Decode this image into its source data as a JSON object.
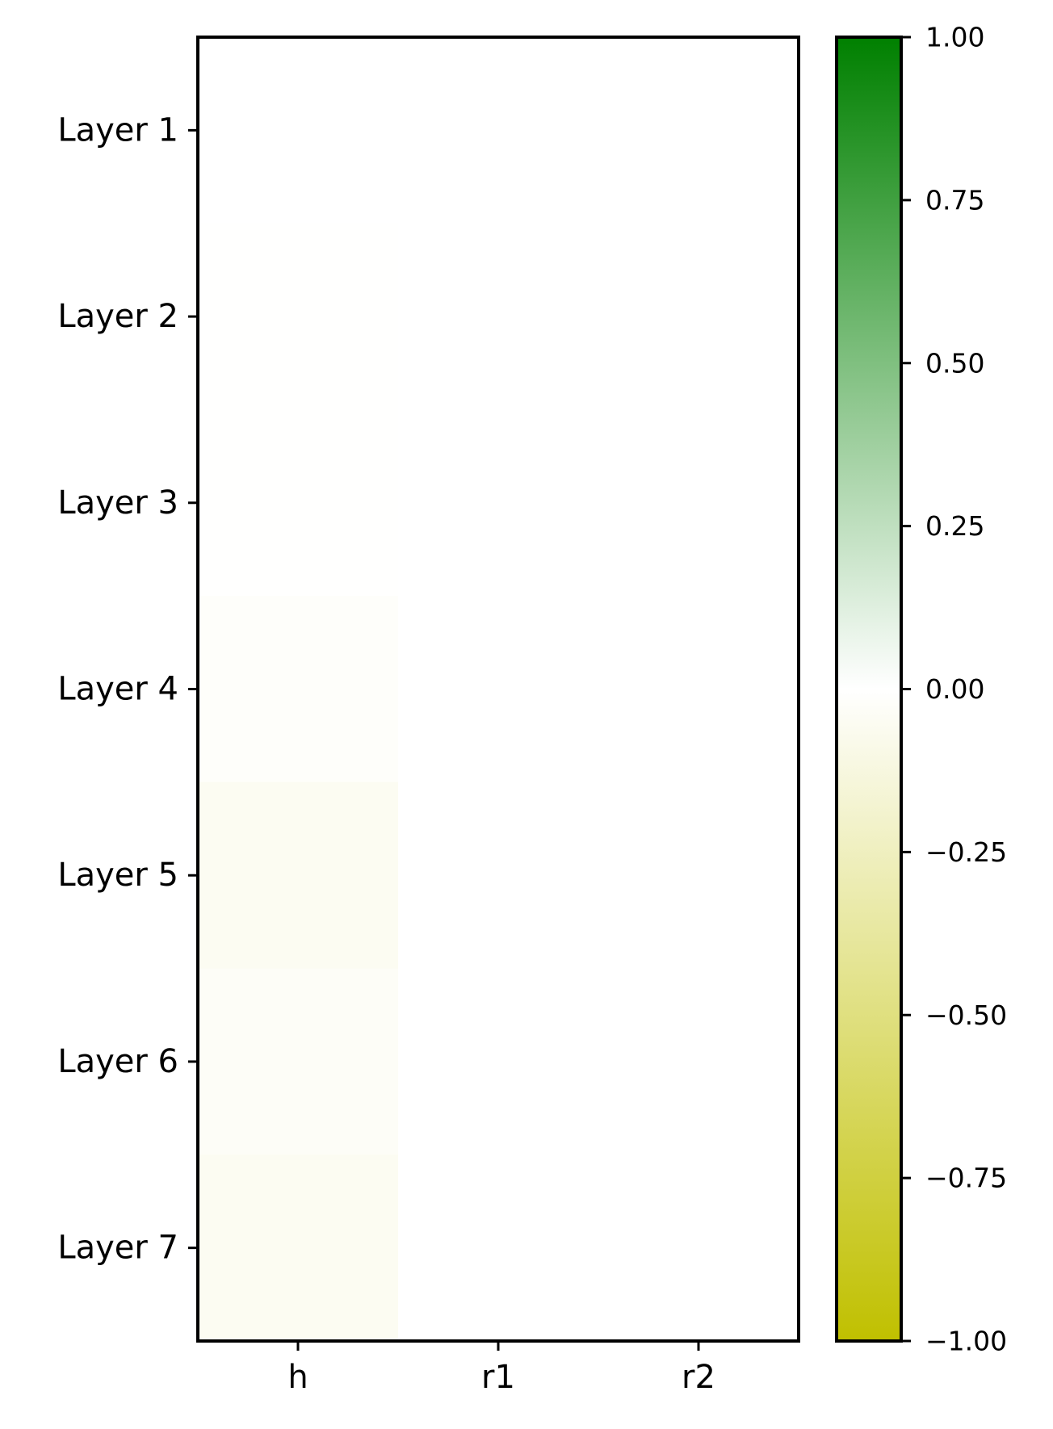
{
  "chart_data": {
    "type": "heatmap",
    "title": "",
    "xlabel": "",
    "ylabel": "",
    "rows": [
      "Layer 1",
      "Layer 2",
      "Layer 3",
      "Layer 4",
      "Layer 5",
      "Layer 6",
      "Layer 7"
    ],
    "columns": [
      "h",
      "r1",
      "r2"
    ],
    "values": [
      [
        0.0,
        0.0,
        0.0
      ],
      [
        -0.005,
        0.0,
        0.0
      ],
      [
        -0.005,
        0.0,
        0.0
      ],
      [
        -0.02,
        0.0,
        0.0
      ],
      [
        -0.05,
        0.0,
        0.0
      ],
      [
        -0.03,
        0.0,
        0.0
      ],
      [
        -0.05,
        0.0,
        0.0
      ]
    ],
    "colorbar": {
      "min": -1.0,
      "max": 1.0,
      "ticks": [
        1.0,
        0.75,
        0.5,
        0.25,
        0.0,
        -0.25,
        -0.5,
        -0.75,
        -1.0
      ],
      "tick_labels": [
        "1.00",
        "0.75",
        "0.50",
        "0.25",
        "0.00",
        "−0.25",
        "−0.50",
        "−0.75",
        "−1.00"
      ],
      "colors": {
        "low": "#c0c000",
        "mid": "#ffffff",
        "high": "#008000"
      }
    },
    "grid": false,
    "legend": "none"
  }
}
